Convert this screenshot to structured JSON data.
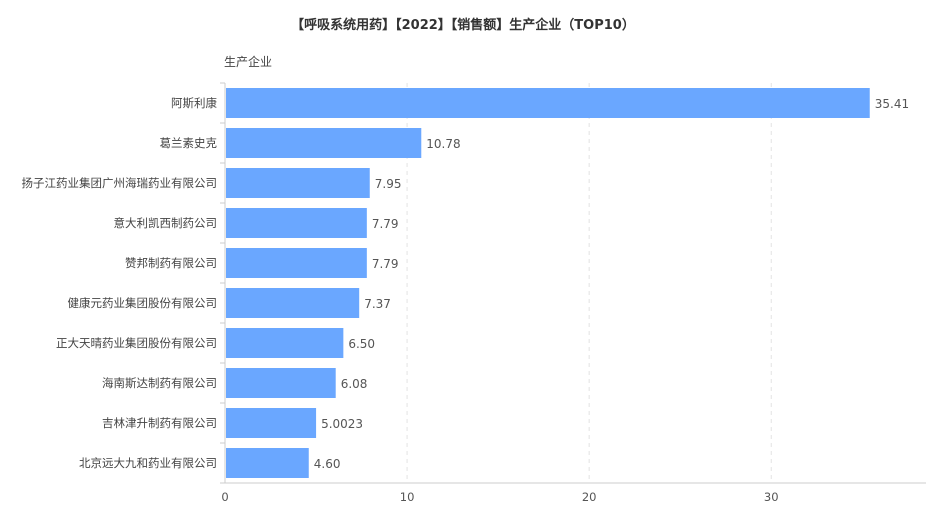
{
  "chart_data": {
    "type": "bar",
    "orientation": "horizontal",
    "title": "【呼吸系统用药】【2022】【销售额】生产企业（TOP10）",
    "ylabel": "生产企业",
    "xlabel": "",
    "categories": [
      "阿斯利康",
      "葛兰素史克",
      "扬子江药业集团广州海瑞药业有限公司",
      "意大利凯西制药公司",
      "赞邦制药有限公司",
      "健康元药业集团股份有限公司",
      "正大天晴药业集团股份有限公司",
      "海南斯达制药有限公司",
      "吉林津升制药有限公司",
      "北京远大九和药业有限公司"
    ],
    "values": [
      35.41,
      10.78,
      7.95,
      7.79,
      7.79,
      7.37,
      6.5,
      6.08,
      5.0023,
      4.6
    ],
    "value_labels": [
      "35.41",
      "10.78",
      "7.95",
      "7.79",
      "7.79",
      "7.37",
      "6.50",
      "6.08",
      "5.0023",
      "4.60"
    ],
    "xlim": [
      0,
      38.5
    ],
    "xticks": [
      0,
      10,
      20,
      30
    ],
    "grid": true,
    "colors": {
      "bar": "#6aa7ff",
      "grid": "#e3e3e3",
      "axis": "#cccccc"
    }
  }
}
